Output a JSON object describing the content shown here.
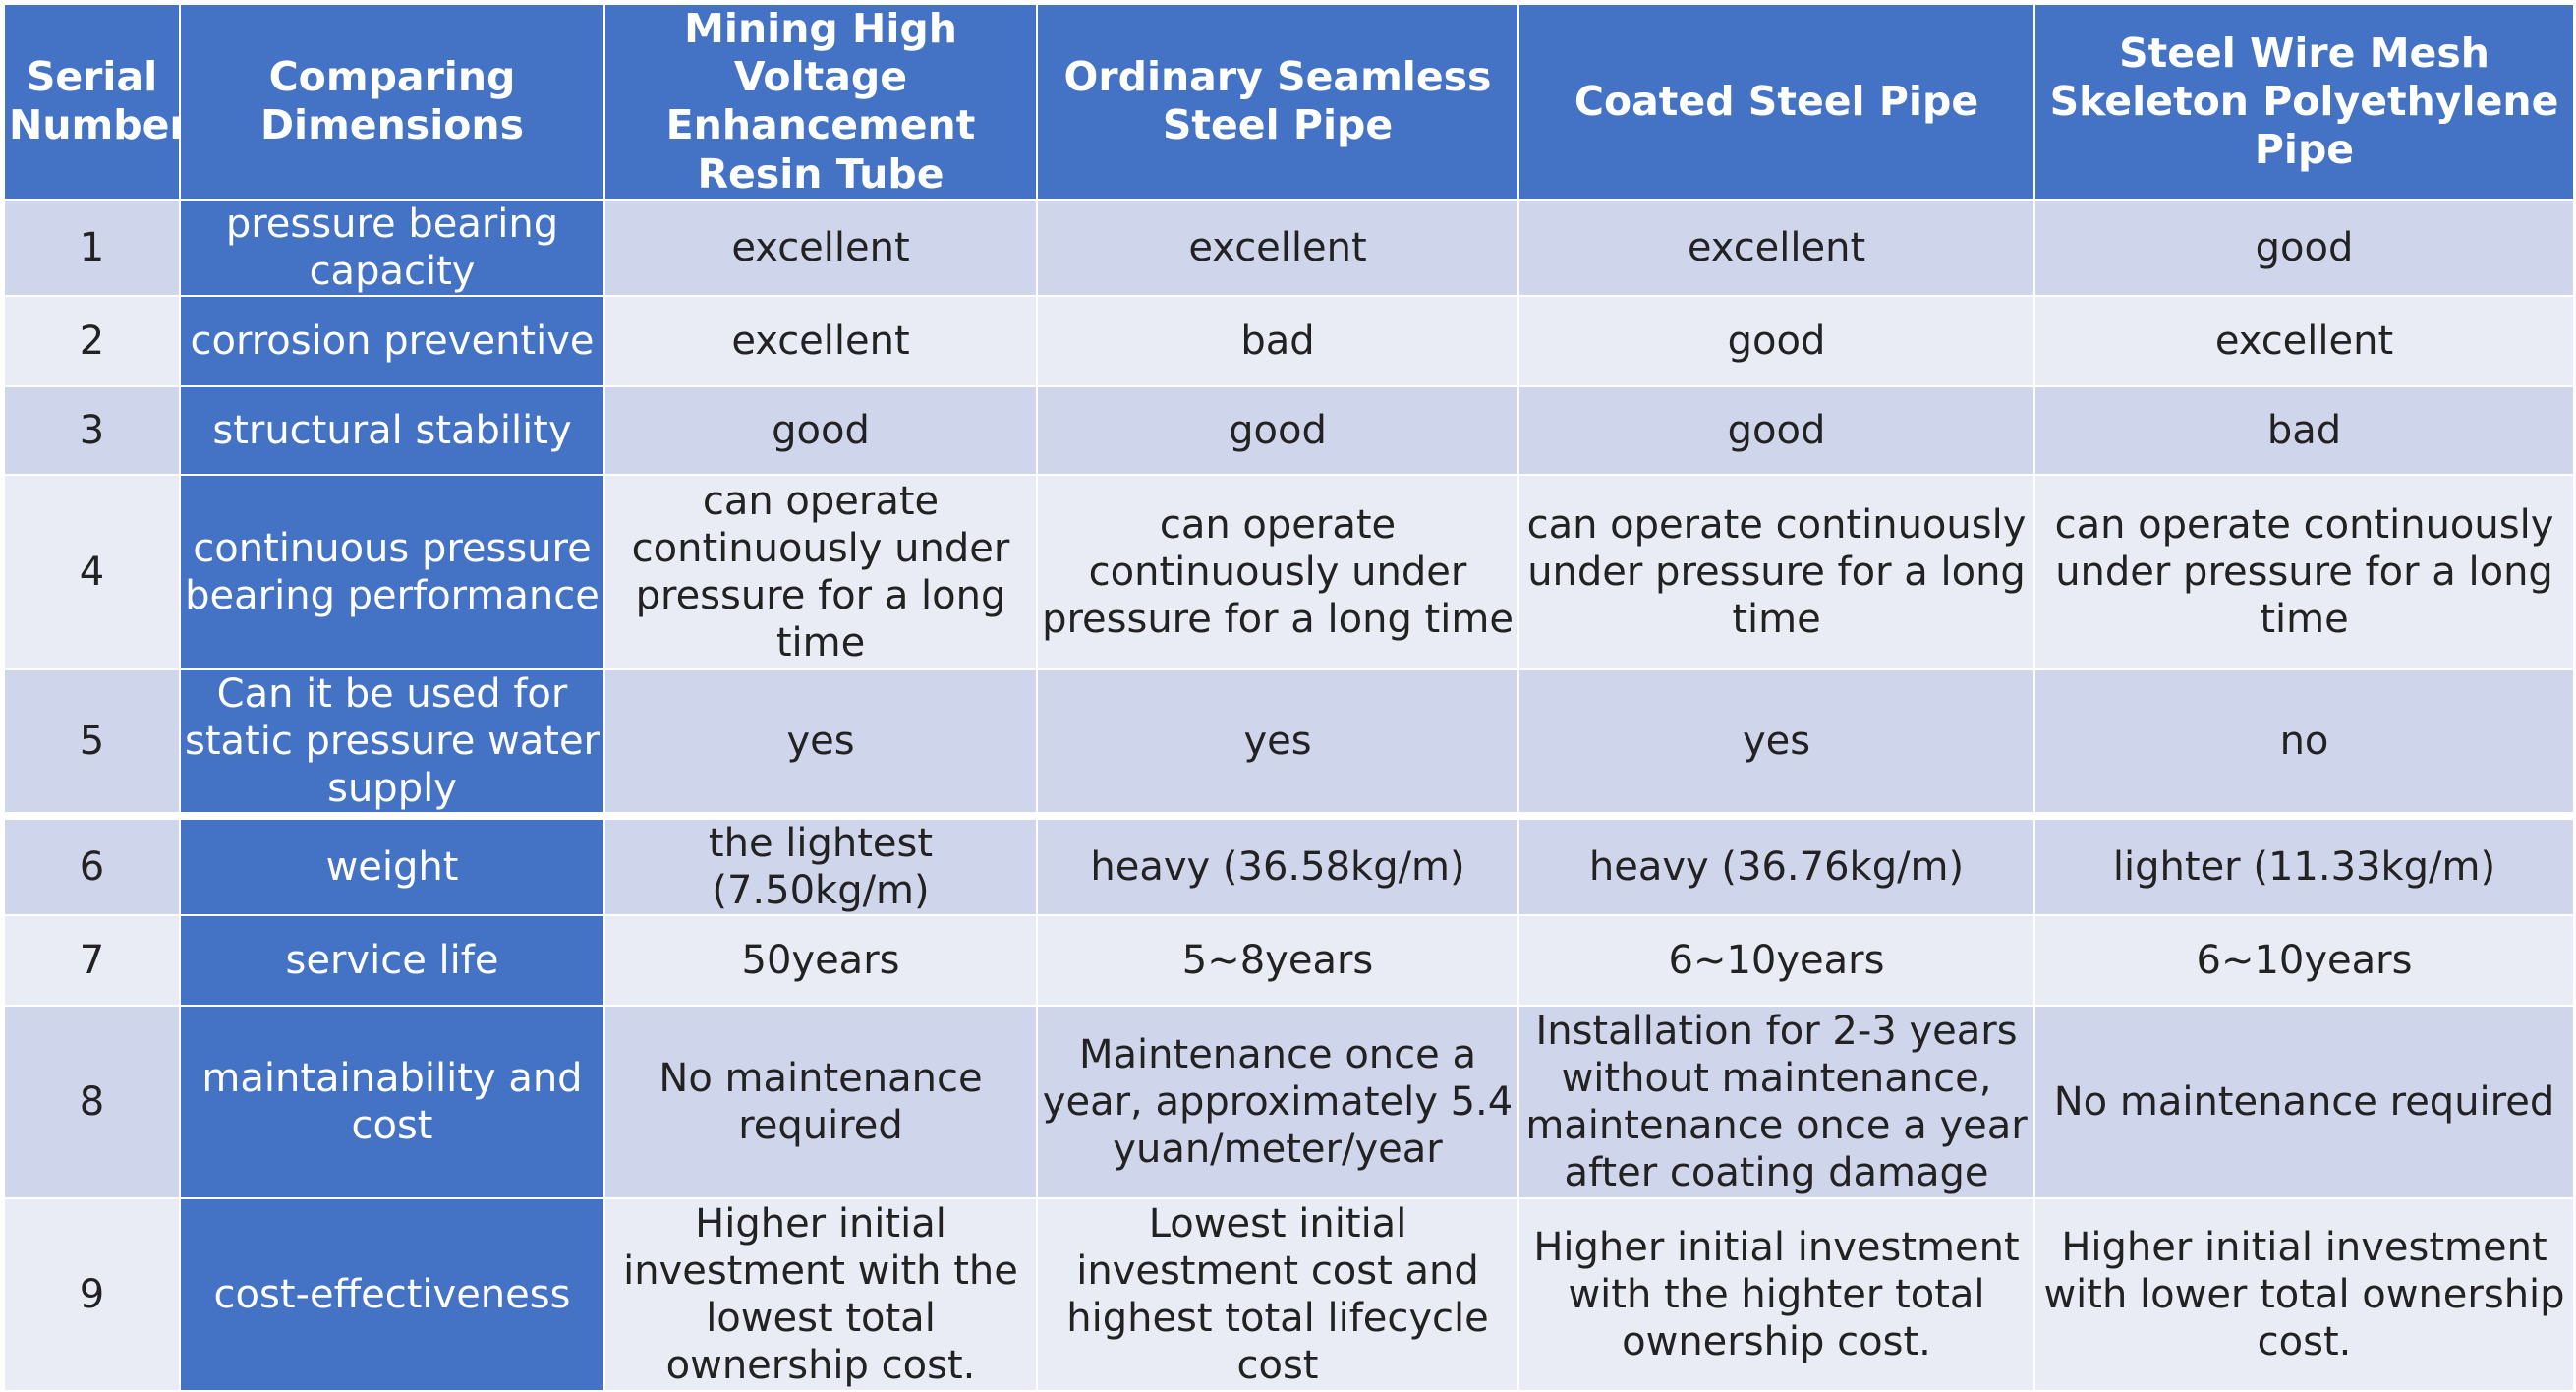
{
  "colors": {
    "header_bg": "#4472C4",
    "row_odd": "#CFD5EA",
    "row_even": "#E9EBF5"
  },
  "headers": {
    "serial": "Serial Number",
    "dimension": "Comparing Dimensions",
    "pipes": [
      "Mining High Voltage Enhancement Resin Tube",
      "Ordinary Seamless Steel Pipe",
      "Coated Steel Pipe",
      "Steel Wire Mesh Skeleton Polyethylene Pipe"
    ]
  },
  "rows": [
    {
      "n": "1",
      "dim": "pressure bearing capacity",
      "v": [
        "excellent",
        "excellent",
        "excellent",
        "good"
      ]
    },
    {
      "n": "2",
      "dim": "corrosion preventive",
      "v": [
        "excellent",
        "bad",
        "good",
        "excellent"
      ]
    },
    {
      "n": "3",
      "dim": "structural stability",
      "v": [
        "good",
        "good",
        "good",
        "bad"
      ]
    },
    {
      "n": "4",
      "dim": "continuous pressure bearing performance",
      "v": [
        "can operate continuously under pressure for a long time",
        "can operate continuously under pressure for a long time",
        "can operate continuously under pressure for a long time",
        "can operate continuously under pressure for a long time"
      ]
    },
    {
      "n": "5",
      "dim": "Can it be used for static pressure water supply",
      "v": [
        "yes",
        "yes",
        "yes",
        "no"
      ]
    },
    {
      "n": "6",
      "dim": "weight",
      "v": [
        "the lightest (7.50kg/m)",
        "heavy (36.58kg/m)",
        "heavy (36.76kg/m)",
        "lighter (11.33kg/m)"
      ]
    },
    {
      "n": "7",
      "dim": "service life",
      "v": [
        "50years",
        "5~8years",
        "6~10years",
        "6~10years"
      ]
    },
    {
      "n": "8",
      "dim": "maintainability and cost",
      "v": [
        "No maintenance required",
        "Maintenance once a year, approximately 5.4 yuan/meter/year",
        "Installation for 2-3 years without maintenance, maintenance once a year after coating damage",
        "No maintenance required"
      ]
    },
    {
      "n": "9",
      "dim": "cost-effectiveness",
      "v": [
        "Higher initial investment with the lowest total ownership cost.",
        "Lowest initial investment cost and highest total lifecycle cost",
        "Higher initial investment with the highter total ownership cost.",
        "Higher initial investment with lower total ownership cost."
      ]
    }
  ]
}
